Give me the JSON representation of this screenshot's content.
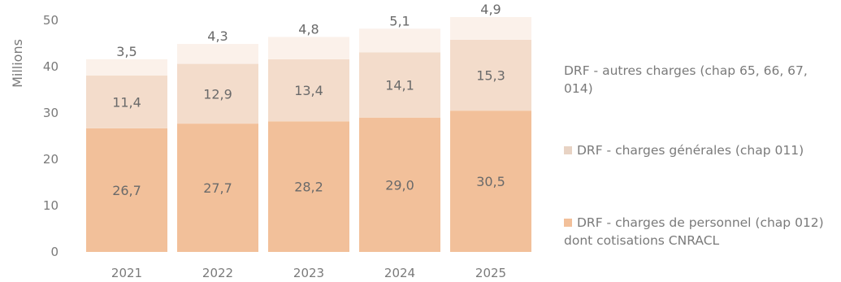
{
  "chart_data": {
    "type": "bar",
    "stacked": true,
    "categories": [
      "2021",
      "2022",
      "2023",
      "2024",
      "2025"
    ],
    "series": [
      {
        "name": "DRF - charges de personnel (chap 012) dont cotisations CNRACL",
        "color": "#f2c09a",
        "values": [
          26.7,
          27.7,
          28.2,
          29.0,
          30.5
        ],
        "labels": [
          "26,7",
          "27,7",
          "28,2",
          "29,0",
          "30,5"
        ]
      },
      {
        "name": "DRF - charges générales (chap 011)",
        "color": "#f3dccb",
        "values": [
          11.4,
          12.9,
          13.4,
          14.1,
          15.3
        ],
        "labels": [
          "11,4",
          "12,9",
          "13,4",
          "14,1",
          "15,3"
        ]
      },
      {
        "name": "DRF - autres charges (chap 65, 66, 67, 014)",
        "color": "#fbf1ea",
        "values": [
          3.5,
          4.3,
          4.8,
          5.1,
          4.9
        ],
        "labels": [
          "3,5",
          "4,3",
          "4,8",
          "5,1",
          "4,9"
        ]
      }
    ],
    "ylabel": "Millions",
    "ylim": [
      0,
      50
    ],
    "yticks": [
      0,
      10,
      20,
      30,
      40,
      50
    ],
    "grid": false,
    "legend_position": "right"
  },
  "legend": {
    "items": [
      {
        "label": "DRF - autres charges (chap 65, 66, 67, 014)",
        "color": "",
        "show_swatch": false
      },
      {
        "label": "DRF - charges générales (chap 011)",
        "color": "#e8d3c4",
        "show_swatch": true
      },
      {
        "label": "DRF - charges de personnel (chap 012) dont cotisations CNRACL",
        "color": "#f2c09a",
        "show_swatch": true
      }
    ]
  }
}
